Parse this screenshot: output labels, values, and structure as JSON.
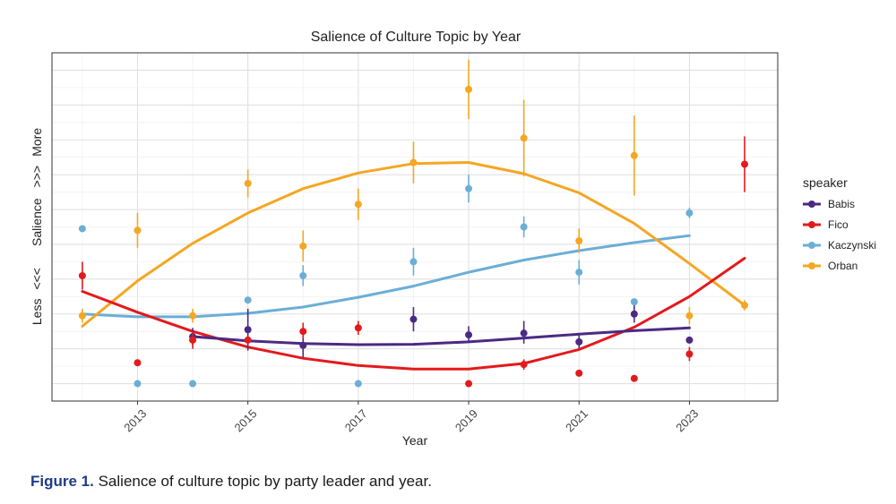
{
  "chart_data": {
    "type": "scatter",
    "title": "Salience of Culture Topic by Year",
    "xlabel": "Year",
    "ylabel_parts": [
      "Less",
      "<<<",
      "Salience",
      ">>>",
      "More"
    ],
    "xlim": [
      2011.45,
      2024.6
    ],
    "ylim": [
      -0.5,
      9.5
    ],
    "x_ticks": [
      2013,
      2015,
      2017,
      2019,
      2021,
      2023
    ],
    "x_tick_labels": [
      "2013",
      "2015",
      "2017",
      "2019",
      "2021",
      "2023"
    ],
    "legend_title": "speaker",
    "legend_position": "right",
    "grid": true,
    "series": [
      {
        "name": "Babis",
        "color": "#4b2a83",
        "points": [
          {
            "x": 2014,
            "y": 1.35,
            "lo": 1.1,
            "hi": 1.6
          },
          {
            "x": 2015,
            "y": 1.55,
            "lo": 0.95,
            "hi": 2.15
          },
          {
            "x": 2016,
            "y": 1.1,
            "lo": 0.75,
            "hi": 1.45
          },
          {
            "x": 2018,
            "y": 1.85,
            "lo": 1.5,
            "hi": 2.2
          },
          {
            "x": 2019,
            "y": 1.4,
            "lo": 1.2,
            "hi": 1.65
          },
          {
            "x": 2020,
            "y": 1.45,
            "lo": 1.15,
            "hi": 1.8
          },
          {
            "x": 2021,
            "y": 1.2,
            "lo": 1.0,
            "hi": 1.4
          },
          {
            "x": 2022,
            "y": 2.0,
            "lo": 1.75,
            "hi": 2.3
          },
          {
            "x": 2023,
            "y": 1.25,
            "lo": 1.25,
            "hi": 1.25
          }
        ],
        "trend": [
          [
            2014,
            1.35
          ],
          [
            2015,
            1.23
          ],
          [
            2016,
            1.15
          ],
          [
            2017,
            1.12
          ],
          [
            2018,
            1.13
          ],
          [
            2019,
            1.2
          ],
          [
            2020,
            1.31
          ],
          [
            2021,
            1.42
          ],
          [
            2022,
            1.52
          ],
          [
            2023,
            1.6
          ]
        ]
      },
      {
        "name": "Fico",
        "color": "#e31a1c",
        "points": [
          {
            "x": 2012,
            "y": 3.1,
            "lo": 2.7,
            "hi": 3.5
          },
          {
            "x": 2013,
            "y": 0.6,
            "lo": 0.6,
            "hi": 0.6
          },
          {
            "x": 2014,
            "y": 1.25,
            "lo": 1.0,
            "hi": 1.5
          },
          {
            "x": 2015,
            "y": 1.25,
            "lo": 1.25,
            "hi": 1.25
          },
          {
            "x": 2016,
            "y": 1.5,
            "lo": 1.3,
            "hi": 1.75
          },
          {
            "x": 2017,
            "y": 1.6,
            "lo": 1.4,
            "hi": 1.8
          },
          {
            "x": 2019,
            "y": 0.0,
            "lo": 0.0,
            "hi": 0.0
          },
          {
            "x": 2020,
            "y": 0.55,
            "lo": 0.4,
            "hi": 0.7
          },
          {
            "x": 2021,
            "y": 0.3,
            "lo": 0.3,
            "hi": 0.3
          },
          {
            "x": 2022,
            "y": 0.15,
            "lo": 0.15,
            "hi": 0.15
          },
          {
            "x": 2023,
            "y": 0.85,
            "lo": 0.65,
            "hi": 1.05
          },
          {
            "x": 2024,
            "y": 6.3,
            "lo": 5.5,
            "hi": 7.1
          }
        ],
        "trend": [
          [
            2012,
            2.65
          ],
          [
            2013,
            2.05
          ],
          [
            2014,
            1.5
          ],
          [
            2015,
            1.05
          ],
          [
            2016,
            0.73
          ],
          [
            2017,
            0.52
          ],
          [
            2018,
            0.42
          ],
          [
            2019,
            0.42
          ],
          [
            2020,
            0.58
          ],
          [
            2021,
            0.98
          ],
          [
            2022,
            1.62
          ],
          [
            2023,
            2.5
          ],
          [
            2024,
            3.6
          ]
        ]
      },
      {
        "name": "Kaczynski",
        "color": "#6baed6",
        "points": [
          {
            "x": 2012,
            "y": 4.45,
            "lo": 4.45,
            "hi": 4.45
          },
          {
            "x": 2013,
            "y": 0.0,
            "lo": 0.0,
            "hi": 0.0
          },
          {
            "x": 2014,
            "y": 0.0,
            "lo": 0.0,
            "hi": 0.0
          },
          {
            "x": 2015,
            "y": 2.4,
            "lo": 2.4,
            "hi": 2.4
          },
          {
            "x": 2016,
            "y": 3.1,
            "lo": 2.8,
            "hi": 3.4
          },
          {
            "x": 2017,
            "y": 0.0,
            "lo": 0.0,
            "hi": 0.0
          },
          {
            "x": 2018,
            "y": 3.5,
            "lo": 3.1,
            "hi": 3.9
          },
          {
            "x": 2019,
            "y": 5.6,
            "lo": 5.2,
            "hi": 6.0
          },
          {
            "x": 2020,
            "y": 4.5,
            "lo": 4.2,
            "hi": 4.8
          },
          {
            "x": 2021,
            "y": 3.2,
            "lo": 2.85,
            "hi": 3.55
          },
          {
            "x": 2022,
            "y": 2.35,
            "lo": 2.35,
            "hi": 2.35
          },
          {
            "x": 2023,
            "y": 4.9,
            "lo": 4.75,
            "hi": 5.05
          }
        ],
        "trend": [
          [
            2012,
            2.0
          ],
          [
            2013,
            1.92
          ],
          [
            2014,
            1.92
          ],
          [
            2015,
            2.02
          ],
          [
            2016,
            2.2
          ],
          [
            2017,
            2.48
          ],
          [
            2018,
            2.8
          ],
          [
            2019,
            3.2
          ],
          [
            2020,
            3.55
          ],
          [
            2021,
            3.82
          ],
          [
            2022,
            4.05
          ],
          [
            2023,
            4.25
          ]
        ]
      },
      {
        "name": "Orban",
        "color": "#f5a623",
        "points": [
          {
            "x": 2012,
            "y": 1.95,
            "lo": 1.75,
            "hi": 2.15
          },
          {
            "x": 2013,
            "y": 4.4,
            "lo": 3.9,
            "hi": 4.9
          },
          {
            "x": 2014,
            "y": 1.95,
            "lo": 1.75,
            "hi": 2.15
          },
          {
            "x": 2015,
            "y": 5.75,
            "lo": 5.35,
            "hi": 6.15
          },
          {
            "x": 2016,
            "y": 3.95,
            "lo": 3.5,
            "hi": 4.4
          },
          {
            "x": 2017,
            "y": 5.15,
            "lo": 4.7,
            "hi": 5.6
          },
          {
            "x": 2018,
            "y": 6.35,
            "lo": 5.75,
            "hi": 6.95
          },
          {
            "x": 2019,
            "y": 8.45,
            "lo": 7.6,
            "hi": 9.3
          },
          {
            "x": 2020,
            "y": 7.05,
            "lo": 5.95,
            "hi": 8.15
          },
          {
            "x": 2021,
            "y": 4.1,
            "lo": 3.75,
            "hi": 4.45
          },
          {
            "x": 2022,
            "y": 6.55,
            "lo": 5.4,
            "hi": 7.7
          },
          {
            "x": 2023,
            "y": 1.95,
            "lo": 1.7,
            "hi": 2.2
          },
          {
            "x": 2024,
            "y": 2.25,
            "lo": 2.1,
            "hi": 2.4
          }
        ],
        "trend": [
          [
            2012,
            1.65
          ],
          [
            2013,
            2.95
          ],
          [
            2014,
            4.03
          ],
          [
            2015,
            4.9
          ],
          [
            2016,
            5.6
          ],
          [
            2017,
            6.05
          ],
          [
            2018,
            6.32
          ],
          [
            2019,
            6.35
          ],
          [
            2020,
            6.03
          ],
          [
            2021,
            5.48
          ],
          [
            2022,
            4.6
          ],
          [
            2023,
            3.45
          ],
          [
            2024,
            2.25
          ]
        ]
      }
    ]
  },
  "caption": {
    "label": "Figure 1.",
    "text": "Salience of culture topic by party leader and year."
  }
}
